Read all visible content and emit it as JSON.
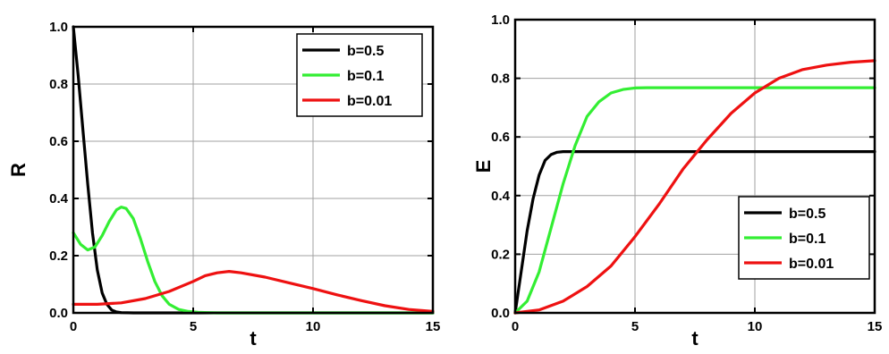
{
  "chart_data": [
    {
      "type": "line",
      "title": "",
      "xlabel": "t",
      "ylabel": "R",
      "xlim": [
        0,
        15
      ],
      "ylim": [
        0,
        1.0
      ],
      "xticks": [
        "0",
        "5",
        "10",
        "15"
      ],
      "yticks": [
        "0.0",
        "0.2",
        "0.4",
        "0.6",
        "0.8",
        "1.0"
      ],
      "grid": true,
      "legend_position": "top-right",
      "series": [
        {
          "name": "b=0.5",
          "color": "#000000",
          "x": [
            0,
            0.2,
            0.4,
            0.6,
            0.8,
            1.0,
            1.2,
            1.4,
            1.6,
            1.8,
            2.0,
            2.5,
            3,
            5,
            10,
            15
          ],
          "y": [
            1.0,
            0.83,
            0.64,
            0.45,
            0.28,
            0.15,
            0.07,
            0.03,
            0.01,
            0.003,
            0.001,
            0,
            0,
            0,
            0,
            0
          ]
        },
        {
          "name": "b=0.1",
          "color": "#33ee33",
          "x": [
            0,
            0.3,
            0.6,
            0.9,
            1.2,
            1.5,
            1.8,
            2.0,
            2.2,
            2.5,
            2.8,
            3.1,
            3.4,
            3.7,
            4.0,
            4.4,
            4.8,
            5.2,
            5.6,
            6,
            8,
            10,
            15
          ],
          "y": [
            0.28,
            0.24,
            0.22,
            0.23,
            0.27,
            0.32,
            0.36,
            0.37,
            0.365,
            0.33,
            0.26,
            0.18,
            0.11,
            0.06,
            0.03,
            0.012,
            0.005,
            0.002,
            0.001,
            0,
            0,
            0,
            0
          ]
        },
        {
          "name": "b=0.01",
          "color": "#ee1111",
          "x": [
            0,
            1,
            2,
            3,
            4,
            5,
            5.5,
            6,
            6.5,
            7,
            8,
            9,
            10,
            11,
            12,
            13,
            14,
            15
          ],
          "y": [
            0.03,
            0.03,
            0.035,
            0.05,
            0.075,
            0.11,
            0.13,
            0.14,
            0.145,
            0.14,
            0.125,
            0.105,
            0.085,
            0.063,
            0.043,
            0.025,
            0.012,
            0.005
          ]
        }
      ]
    },
    {
      "type": "line",
      "title": "",
      "xlabel": "t",
      "ylabel": "E",
      "xlim": [
        0,
        15
      ],
      "ylim": [
        0,
        1.0
      ],
      "xticks": [
        "0",
        "5",
        "10",
        "15"
      ],
      "yticks": [
        "0.0",
        "0.2",
        "0.4",
        "0.6",
        "0.8",
        "1.0"
      ],
      "grid": true,
      "legend_position": "bottom-right",
      "series": [
        {
          "name": "b=0.5",
          "color": "#000000",
          "x": [
            0,
            0.25,
            0.5,
            0.75,
            1.0,
            1.25,
            1.5,
            1.75,
            2.0,
            2.5,
            3,
            5,
            10,
            15
          ],
          "y": [
            0,
            0.14,
            0.28,
            0.39,
            0.47,
            0.52,
            0.54,
            0.548,
            0.55,
            0.55,
            0.55,
            0.55,
            0.55,
            0.55
          ]
        },
        {
          "name": "b=0.1",
          "color": "#33ee33",
          "x": [
            0,
            0.5,
            1.0,
            1.5,
            2.0,
            2.5,
            3.0,
            3.5,
            4.0,
            4.5,
            5.0,
            5.5,
            6,
            8,
            10,
            15
          ],
          "y": [
            0,
            0.04,
            0.14,
            0.29,
            0.44,
            0.57,
            0.67,
            0.72,
            0.75,
            0.762,
            0.767,
            0.768,
            0.768,
            0.768,
            0.768,
            0.768
          ]
        },
        {
          "name": "b=0.01",
          "color": "#ee1111",
          "x": [
            0,
            1,
            2,
            3,
            4,
            5,
            6,
            7,
            8,
            9,
            10,
            11,
            12,
            13,
            14,
            15
          ],
          "y": [
            0,
            0.01,
            0.04,
            0.09,
            0.16,
            0.26,
            0.37,
            0.49,
            0.59,
            0.68,
            0.75,
            0.8,
            0.83,
            0.845,
            0.855,
            0.86
          ]
        }
      ]
    }
  ]
}
